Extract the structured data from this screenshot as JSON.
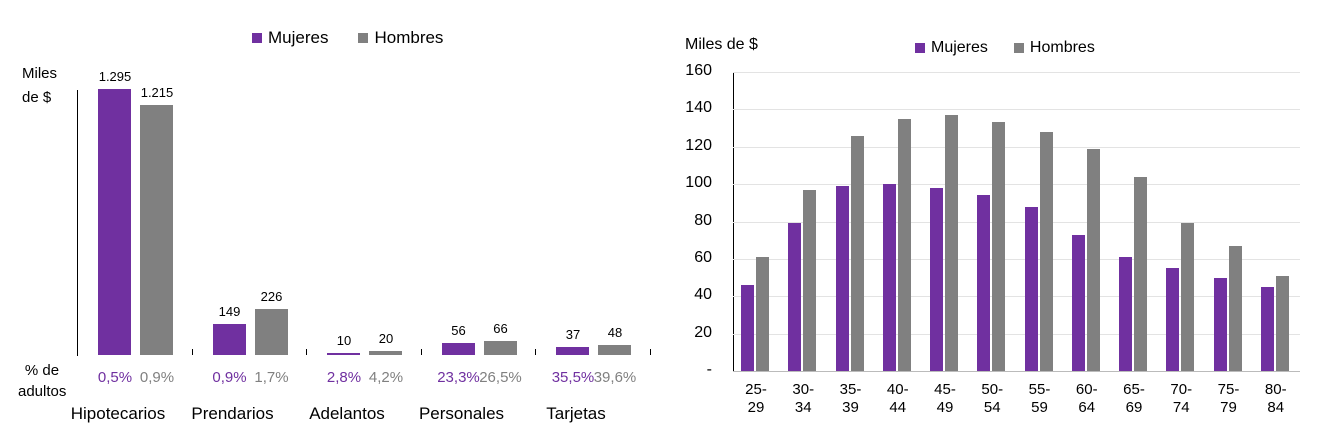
{
  "chart_data": [
    {
      "type": "bar",
      "title": "",
      "legend": [
        "Mujeres",
        "Hombres"
      ],
      "legend_position": "top",
      "ylabel": "Miles de $",
      "row_label": "% de adultos",
      "categories": [
        "Hipotecarios",
        "Prendarios",
        "Adelantos",
        "Personales",
        "Tarjetas"
      ],
      "series": [
        {
          "name": "Mujeres",
          "color": "#7030a0",
          "values": [
            1295,
            149,
            10,
            56,
            37
          ],
          "labels": [
            "1.295",
            "149",
            "10",
            "56",
            "37"
          ],
          "pct_adultos": [
            "0,5%",
            "0,9%",
            "2,8%",
            "23,3%",
            "35,5%"
          ]
        },
        {
          "name": "Hombres",
          "color": "#808080",
          "values": [
            1215,
            226,
            20,
            66,
            48
          ],
          "labels": [
            "1.215",
            "226",
            "20",
            "66",
            "48"
          ],
          "pct_adultos": [
            "0,9%",
            "1,7%",
            "4,2%",
            "26,5%",
            "39,6%"
          ]
        }
      ]
    },
    {
      "type": "bar",
      "title": "",
      "legend": [
        "Mujeres",
        "Hombres"
      ],
      "legend_position": "top",
      "ylabel": "Miles de $",
      "ylim": [
        0,
        160
      ],
      "yticks": [
        "-",
        "20",
        "40",
        "60",
        "80",
        "100",
        "120",
        "140",
        "160"
      ],
      "categories": [
        [
          "25-",
          "29"
        ],
        [
          "30-",
          "34"
        ],
        [
          "35-",
          "39"
        ],
        [
          "40-",
          "44"
        ],
        [
          "45-",
          "49"
        ],
        [
          "50-",
          "54"
        ],
        [
          "55-",
          "59"
        ],
        [
          "60-",
          "64"
        ],
        [
          "65-",
          "69"
        ],
        [
          "70-",
          "74"
        ],
        [
          "75-",
          "79"
        ],
        [
          "80-",
          "84"
        ]
      ],
      "series": [
        {
          "name": "Mujeres",
          "color": "#7030a0",
          "values": [
            46,
            79,
            99,
            100,
            98,
            94,
            88,
            73,
            61,
            55,
            50,
            45
          ]
        },
        {
          "name": "Hombres",
          "color": "#808080",
          "values": [
            61,
            97,
            126,
            135,
            137,
            133,
            128,
            119,
            104,
            79,
            67,
            51
          ]
        }
      ]
    }
  ]
}
